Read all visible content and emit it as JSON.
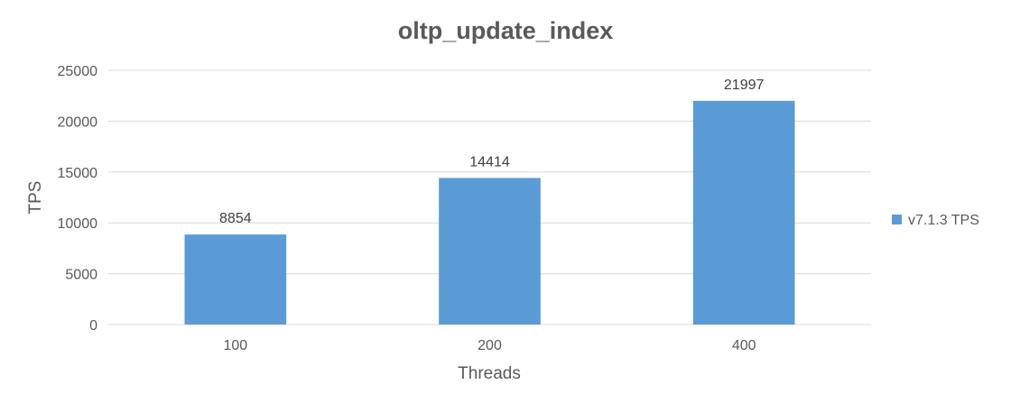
{
  "chart_data": {
    "type": "bar",
    "title": "oltp_update_index",
    "xlabel": "Threads",
    "ylabel": "TPS",
    "categories": [
      "100",
      "200",
      "400"
    ],
    "series": [
      {
        "name": "v7.1.3 TPS",
        "values": [
          8854,
          14414,
          21997
        ],
        "color": "#5b9bd5"
      }
    ],
    "ylim": [
      0,
      25000
    ],
    "yticks": [
      0,
      5000,
      10000,
      15000,
      20000,
      25000
    ],
    "grid": true,
    "legend_position": "right"
  }
}
